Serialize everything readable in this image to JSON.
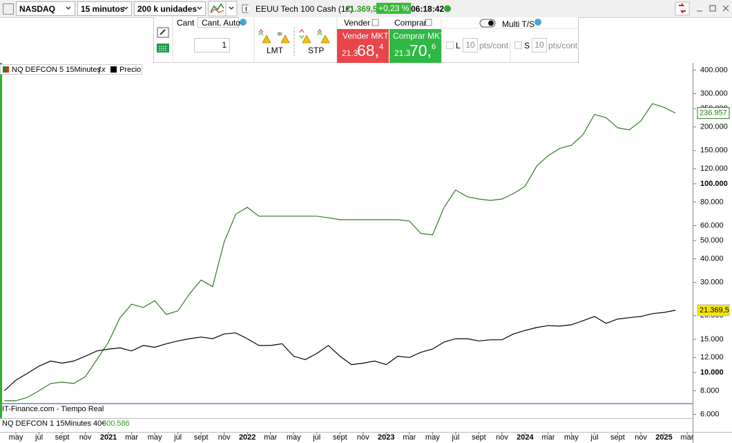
{
  "toolbar": {
    "instrument": "NASDAQ",
    "timeframe": "15 minutos",
    "units": "200 k unidades",
    "product": "EEUU Tech 100 Cash (1€)",
    "price": "21.369,5",
    "change": "+0,23 %",
    "time": "06:18:42"
  },
  "order_panel": {
    "quantity_label": "Cant",
    "auto_quantity": "Cant. Auto",
    "quantity": "1",
    "limit": "LMT",
    "stop": "STP",
    "sell_label": "Vender",
    "buy_label": "Comprar",
    "sell_button": "Vender MKT",
    "buy_button": "Comprar MKT",
    "sell_price": {
      "prefix": "21.3",
      "main": "68,",
      "suffix": "4"
    },
    "buy_price": {
      "prefix": "21.3",
      "main": "70,",
      "suffix": "6"
    },
    "multi_ts": "Multi T/S",
    "long": {
      "label": "L",
      "points": "10",
      "unit": "pts/cont"
    },
    "short": {
      "label": "S",
      "points": "10",
      "unit": "pts/cont"
    }
  },
  "chart_data": {
    "type": "line",
    "log_scale": true,
    "grid": false,
    "x": [
      "2020-04",
      "2020-05",
      "2020-06",
      "2020-07",
      "2020-08",
      "2020-09",
      "2020-10",
      "2020-11",
      "2020-12",
      "2021-01",
      "2021-02",
      "2021-03",
      "2021-04",
      "2021-05",
      "2021-06",
      "2021-07",
      "2021-08",
      "2021-09",
      "2021-10",
      "2021-11",
      "2021-12",
      "2022-01",
      "2022-02",
      "2022-03",
      "2022-04",
      "2022-05",
      "2022-06",
      "2022-07",
      "2022-08",
      "2022-09",
      "2022-10",
      "2022-11",
      "2022-12",
      "2023-01",
      "2023-02",
      "2023-03",
      "2023-04",
      "2023-05",
      "2023-06",
      "2023-07",
      "2023-08",
      "2023-09",
      "2023-10",
      "2023-11",
      "2023-12",
      "2024-01",
      "2024-02",
      "2024-03",
      "2024-04",
      "2024-05",
      "2024-06",
      "2024-07",
      "2024-08",
      "2024-09",
      "2024-10",
      "2024-11",
      "2024-12",
      "2025-01",
      "2025-02"
    ],
    "series": [
      {
        "name": "NQ DEFCON 5 15Minutes",
        "color": "#2d7a1f",
        "last_label": "236.957",
        "values": [
          7080,
          7080,
          7380,
          8000,
          8740,
          8890,
          8740,
          9500,
          11700,
          14500,
          19500,
          23000,
          22100,
          24000,
          20300,
          21200,
          26100,
          30900,
          28500,
          49300,
          69000,
          75000,
          67300,
          67300,
          67300,
          67300,
          67300,
          67300,
          66000,
          64500,
          64500,
          64500,
          64500,
          64500,
          64500,
          63400,
          54500,
          53600,
          75000,
          92700,
          85300,
          83000,
          81600,
          83000,
          88800,
          96900,
          124000,
          141000,
          154000,
          160000,
          182000,
          233000,
          224000,
          198000,
          193000,
          215000,
          266000,
          254000,
          236957
        ]
      },
      {
        "name": "Precio",
        "color": "#000000",
        "last_label": "21.369,5",
        "values": [
          8000,
          9100,
          9900,
          10800,
          11500,
          11200,
          11500,
          12200,
          13000,
          13300,
          13500,
          13000,
          13900,
          13600,
          14200,
          14700,
          15100,
          15400,
          15100,
          16000,
          16200,
          15100,
          13900,
          13900,
          14200,
          12200,
          11700,
          12600,
          13900,
          12200,
          11000,
          11200,
          11500,
          11000,
          12200,
          12000,
          12800,
          13300,
          14500,
          15100,
          15100,
          14700,
          14900,
          14900,
          16000,
          16700,
          17300,
          17700,
          17600,
          17900,
          18800,
          19800,
          18200,
          19200,
          19500,
          19800,
          20500,
          20800,
          21369.5
        ]
      }
    ],
    "reference_line": {
      "value": 6840,
      "color": "#3535c8"
    },
    "xlim": [
      "2020-03",
      "2025-03"
    ],
    "xticks": [
      {
        "value": "2020-05",
        "label": "may"
      },
      {
        "value": "2020-07",
        "label": "jul"
      },
      {
        "value": "2020-09",
        "label": "sept"
      },
      {
        "value": "2020-11",
        "label": "nov"
      },
      {
        "value": "2021-01",
        "label": "2021"
      },
      {
        "value": "2021-03",
        "label": "mar"
      },
      {
        "value": "2021-05",
        "label": "may"
      },
      {
        "value": "2021-07",
        "label": "jul"
      },
      {
        "value": "2021-09",
        "label": "sept"
      },
      {
        "value": "2021-11",
        "label": "nov"
      },
      {
        "value": "2022-01",
        "label": "2022"
      },
      {
        "value": "2022-03",
        "label": "mar"
      },
      {
        "value": "2022-05",
        "label": "may"
      },
      {
        "value": "2022-07",
        "label": "jul"
      },
      {
        "value": "2022-09",
        "label": "sept"
      },
      {
        "value": "2022-11",
        "label": "nov"
      },
      {
        "value": "2023-01",
        "label": "2023"
      },
      {
        "value": "2023-03",
        "label": "mar"
      },
      {
        "value": "2023-05",
        "label": "may"
      },
      {
        "value": "2023-07",
        "label": "jul"
      },
      {
        "value": "2023-09",
        "label": "sept"
      },
      {
        "value": "2023-11",
        "label": "nov"
      },
      {
        "value": "2024-01",
        "label": "2024"
      },
      {
        "value": "2024-03",
        "label": "mar"
      },
      {
        "value": "2024-05",
        "label": "may"
      },
      {
        "value": "2024-07",
        "label": "jul"
      },
      {
        "value": "2024-09",
        "label": "sept"
      },
      {
        "value": "2024-11",
        "label": "nov"
      },
      {
        "value": "2025-01",
        "label": "2025"
      },
      {
        "value": "2025-03",
        "label": "mar"
      }
    ],
    "ylim": [
      4840,
      437000
    ],
    "yticks": [
      {
        "value": 400000,
        "label": "400.000"
      },
      {
        "value": 300000,
        "label": "300.000"
      },
      {
        "value": 250000,
        "label": "250.000"
      },
      {
        "value": 200000,
        "label": "200.000"
      },
      {
        "value": 150000,
        "label": "150.000"
      },
      {
        "value": 120000,
        "label": "120.000"
      },
      {
        "value": 100000,
        "label": "100.000"
      },
      {
        "value": 80000,
        "label": "80.000"
      },
      {
        "value": 60000,
        "label": "60.000"
      },
      {
        "value": 50000,
        "label": "50.000"
      },
      {
        "value": 40000,
        "label": "40.000"
      },
      {
        "value": 30000,
        "label": "30.000"
      },
      {
        "value": 20000,
        "label": "20.000"
      },
      {
        "value": 15000,
        "label": "15.000"
      },
      {
        "value": 12000,
        "label": "12.000"
      },
      {
        "value": 10000,
        "label": "10.000"
      },
      {
        "value": 8000,
        "label": "8.000"
      },
      {
        "value": 6000,
        "label": "6.000"
      }
    ]
  },
  "footer": {
    "source": "IT-Finance.com - Tiempo Real",
    "indicator": "NQ DEFCON 1 15Minutes 40€",
    "indicator_value": "500.586"
  }
}
